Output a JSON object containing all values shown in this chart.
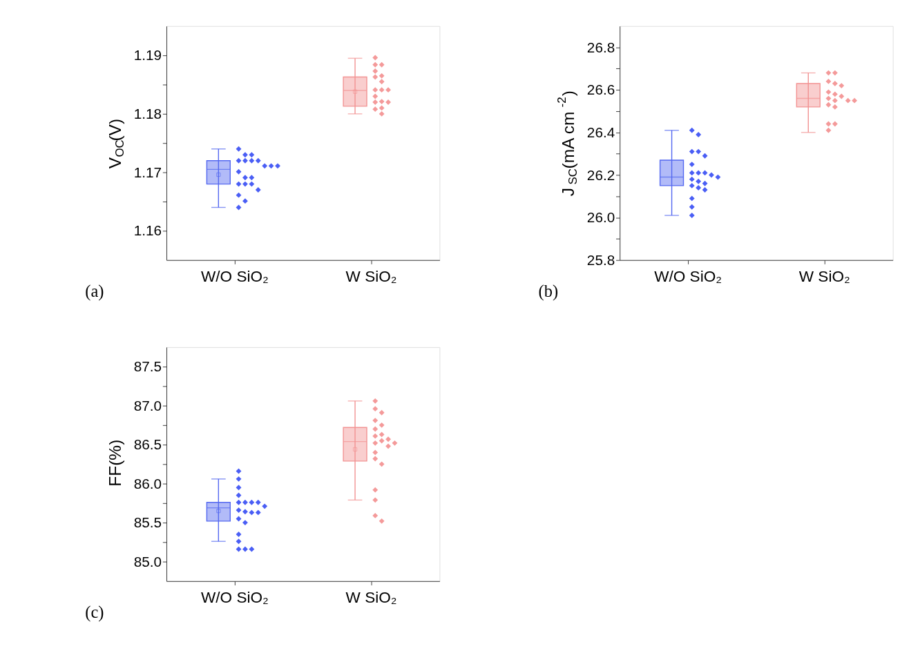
{
  "chart_data": [
    {
      "type": "box",
      "ylabel": "V$_{OC}$(V)",
      "categories": [
        "W/O SiO₂",
        "W SiO₂"
      ],
      "colors": [
        "#5468f0",
        "#f29393"
      ],
      "boxes": [
        {
          "low": 1.164,
          "q1": 1.168,
          "median": 1.1705,
          "q3": 1.172,
          "high": 1.174,
          "mean": 1.1696
        },
        {
          "low": 1.18,
          "q1": 1.1813,
          "median": 1.184,
          "q3": 1.1863,
          "high": 1.1895,
          "mean": 1.1838
        }
      ],
      "ylim": [
        1.155,
        1.195
      ],
      "yticks": [
        1.16,
        {
          "value": 1.165,
          "label": null
        },
        1.17,
        {
          "value": 1.175,
          "label": null
        },
        1.18,
        {
          "value": 1.185,
          "label": null
        },
        1.19
      ],
      "grid": false,
      "series": [
        {
          "type": "scatter",
          "marker": "diamond",
          "color": "#4a5ef5",
          "x": [
            "W/O SiO₂",
            "W/O SiO₂",
            "W/O SiO₂",
            "W/O SiO₂",
            "W/O SiO₂",
            "W/O SiO₂",
            "W/O SiO₂",
            "W/O SiO₂",
            "W/O SiO₂",
            "W/O SiO₂",
            "W/O SiO₂",
            "W/O SiO₂",
            "W/O SiO₂",
            "W/O SiO₂",
            "W/O SiO₂",
            "W/O SiO₂",
            "W/O SiO₂",
            "W/O SiO₂",
            "W/O SiO₂",
            "W/O SiO₂"
          ],
          "values": [
            1.174,
            1.173,
            1.173,
            1.172,
            1.172,
            1.172,
            1.172,
            1.1711,
            1.1711,
            1.1711,
            1.1701,
            1.1691,
            1.1691,
            1.168,
            1.168,
            1.168,
            1.167,
            1.1661,
            1.1651,
            1.164
          ]
        },
        {
          "type": "scatter",
          "marker": "diamond",
          "color": "#f49a9a",
          "x": [
            "W SiO₂",
            "W SiO₂",
            "W SiO₂",
            "W SiO₂",
            "W SiO₂",
            "W SiO₂",
            "W SiO₂",
            "W SiO₂",
            "W SiO₂",
            "W SiO₂",
            "W SiO₂",
            "W SiO₂",
            "W SiO₂",
            "W SiO₂",
            "W SiO₂",
            "W SiO₂",
            "W SiO₂"
          ],
          "values": [
            1.1896,
            1.1884,
            1.1884,
            1.1873,
            1.1865,
            1.1863,
            1.1855,
            1.1841,
            1.1841,
            1.1841,
            1.183,
            1.1821,
            1.182,
            1.182,
            1.181,
            1.1808,
            1.18
          ]
        }
      ],
      "annotations": [
        "(a)"
      ]
    },
    {
      "type": "box",
      "ylabel": "J$_{SC}$(mA cm$^{-2}$)",
      "categories": [
        "W/O SiO₂",
        "W SiO₂"
      ],
      "colors": [
        "#5468f0",
        "#f29393"
      ],
      "boxes": [
        {
          "low": 26.01,
          "q1": 26.15,
          "median": 26.19,
          "q3": 26.27,
          "high": 26.41
        },
        {
          "low": 26.4,
          "q1": 26.52,
          "median": 26.56,
          "q3": 26.63,
          "high": 26.68
        }
      ],
      "ylim": [
        25.8,
        26.9
      ],
      "yticks": [
        25.8,
        {
          "value": 25.9,
          "label": null
        },
        {
          "value": 26,
          "label": "26.0"
        },
        {
          "value": 26.1,
          "label": null
        },
        26.2,
        {
          "value": 26.3,
          "label": null
        },
        26.4,
        {
          "value": 26.5,
          "label": null
        },
        26.6,
        {
          "value": 26.7,
          "label": null
        },
        26.8
      ],
      "grid": false,
      "series": [
        {
          "type": "scatter",
          "marker": "diamond",
          "color": "#4a5ef5",
          "x": [
            "W/O SiO₂",
            "W/O SiO₂",
            "W/O SiO₂",
            "W/O SiO₂",
            "W/O SiO₂",
            "W/O SiO₂",
            "W/O SiO₂",
            "W/O SiO₂",
            "W/O SiO₂",
            "W/O SiO₂",
            "W/O SiO₂",
            "W/O SiO₂",
            "W/O SiO₂",
            "W/O SiO₂",
            "W/O SiO₂",
            "W/O SiO₂",
            "W/O SiO₂",
            "W/O SiO₂",
            "W/O SiO₂",
            "W/O SiO₂"
          ],
          "values": [
            26.41,
            26.39,
            26.31,
            26.31,
            26.29,
            26.25,
            26.21,
            26.21,
            26.21,
            26.2,
            26.19,
            26.18,
            26.17,
            26.16,
            26.15,
            26.14,
            26.13,
            26.09,
            26.05,
            26.01
          ]
        },
        {
          "type": "scatter",
          "marker": "diamond",
          "color": "#f49a9a",
          "x": [
            "W SiO₂",
            "W SiO₂",
            "W SiO₂",
            "W SiO₂",
            "W SiO₂",
            "W SiO₂",
            "W SiO₂",
            "W SiO₂",
            "W SiO₂",
            "W SiO₂",
            "W SiO₂",
            "W SiO₂",
            "W SiO₂",
            "W SiO₂",
            "W SiO₂",
            "W SiO₂",
            "W SiO₂"
          ],
          "values": [
            26.68,
            26.68,
            26.64,
            26.63,
            26.62,
            26.59,
            26.58,
            26.57,
            26.56,
            26.55,
            26.55,
            26.55,
            26.53,
            26.52,
            26.44,
            26.44,
            26.41
          ]
        }
      ],
      "annotations": [
        "(b)"
      ]
    },
    {
      "type": "box",
      "ylabel": "FF(%)",
      "categories": [
        "W/O SiO₂",
        "W SiO₂"
      ],
      "colors": [
        "#5468f0",
        "#f29393"
      ],
      "boxes": [
        {
          "low": 85.26,
          "q1": 85.52,
          "median": 85.69,
          "q3": 85.76,
          "high": 86.06,
          "mean": 85.65
        },
        {
          "low": 85.79,
          "q1": 86.29,
          "median": 86.54,
          "q3": 86.72,
          "high": 87.06,
          "mean": 86.44
        }
      ],
      "ylim": [
        84.75,
        87.75
      ],
      "yticks": [
        {
          "value": 85,
          "label": "85.0"
        },
        {
          "value": 85.25,
          "label": null
        },
        85.5,
        {
          "value": 85.75,
          "label": null
        },
        {
          "value": 86,
          "label": "86.0"
        },
        {
          "value": 86.25,
          "label": null
        },
        86.5,
        {
          "value": 86.75,
          "label": null
        },
        {
          "value": 87,
          "label": "87.0"
        },
        {
          "value": 87.25,
          "label": null
        },
        87.5
      ],
      "grid": false,
      "series": [
        {
          "type": "scatter",
          "marker": "diamond",
          "color": "#4a5ef5",
          "x": [
            "W/O SiO₂",
            "W/O SiO₂",
            "W/O SiO₂",
            "W/O SiO₂",
            "W/O SiO₂",
            "W/O SiO₂",
            "W/O SiO₂",
            "W/O SiO₂",
            "W/O SiO₂",
            "W/O SiO₂",
            "W/O SiO₂",
            "W/O SiO₂",
            "W/O SiO₂",
            "W/O SiO₂",
            "W/O SiO₂",
            "W/O SiO₂",
            "W/O SiO₂",
            "W/O SiO₂",
            "W/O SiO₂",
            "W/O SiO₂"
          ],
          "values": [
            86.16,
            86.06,
            85.95,
            85.85,
            85.76,
            85.76,
            85.76,
            85.76,
            85.71,
            85.66,
            85.64,
            85.63,
            85.63,
            85.55,
            85.5,
            85.35,
            85.26,
            85.16,
            85.16,
            85.16
          ]
        },
        {
          "type": "scatter",
          "marker": "diamond",
          "color": "#f49a9a",
          "x": [
            "W SiO₂",
            "W SiO₂",
            "W SiO₂",
            "W SiO₂",
            "W SiO₂",
            "W SiO₂",
            "W SiO₂",
            "W SiO₂",
            "W SiO₂",
            "W SiO₂",
            "W SiO₂",
            "W SiO₂",
            "W SiO₂",
            "W SiO₂",
            "W SiO₂",
            "W SiO₂",
            "W SiO₂",
            "W SiO₂",
            "W SiO₂",
            "W SiO₂"
          ],
          "values": [
            87.06,
            86.96,
            86.91,
            86.81,
            86.75,
            86.7,
            86.63,
            86.61,
            86.57,
            86.55,
            86.52,
            86.52,
            86.48,
            86.4,
            86.32,
            86.25,
            85.92,
            85.79,
            85.59,
            85.52
          ]
        }
      ],
      "annotations": [
        "(c)"
      ]
    }
  ]
}
